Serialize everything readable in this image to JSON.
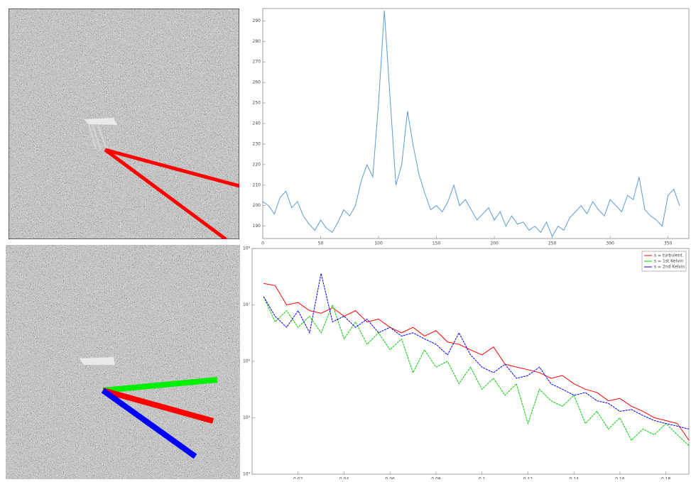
{
  "chart_data": [
    {
      "type": "line",
      "x": [
        0,
        5,
        10,
        15,
        20,
        25,
        30,
        35,
        40,
        45,
        50,
        55,
        60,
        65,
        70,
        75,
        80,
        85,
        90,
        95,
        100,
        105,
        110,
        115,
        120,
        125,
        130,
        135,
        140,
        145,
        150,
        155,
        160,
        165,
        170,
        175,
        180,
        185,
        190,
        195,
        200,
        205,
        210,
        215,
        220,
        225,
        230,
        235,
        240,
        245,
        250,
        255,
        260,
        265,
        270,
        275,
        280,
        285,
        290,
        295,
        300,
        305,
        310,
        315,
        320,
        325,
        330,
        335,
        340,
        345,
        350,
        355,
        360
      ],
      "series": [
        {
          "color": "#5b9bd5",
          "values": [
            202,
            200,
            196,
            204,
            207,
            199,
            202,
            195,
            191,
            188,
            193,
            189,
            187,
            192,
            198,
            195,
            200,
            212,
            220,
            214,
            250,
            295,
            252,
            210,
            220,
            246,
            229,
            215,
            206,
            198,
            200,
            197,
            202,
            210,
            200,
            203,
            198,
            193,
            196,
            199,
            193,
            197,
            190,
            195,
            191,
            192,
            188,
            190,
            187,
            192,
            185,
            190,
            188,
            194,
            197,
            200,
            196,
            202,
            198,
            195,
            203,
            200,
            197,
            205,
            203,
            214,
            198,
            195,
            193,
            190,
            205,
            208,
            200
          ]
        }
      ],
      "xlim": [
        0,
        368
      ],
      "xticks": [
        0,
        50,
        100,
        150,
        200,
        250,
        300,
        350
      ],
      "ylim": [
        184,
        296
      ],
      "yticks": [
        190,
        200,
        210,
        220,
        230,
        240,
        250,
        260,
        270,
        280,
        290
      ]
    },
    {
      "type": "line",
      "log_y": true,
      "legend": "top-right",
      "x": [
        0.005,
        0.01,
        0.015,
        0.02,
        0.025,
        0.03,
        0.035,
        0.04,
        0.045,
        0.05,
        0.055,
        0.06,
        0.065,
        0.07,
        0.075,
        0.08,
        0.085,
        0.09,
        0.095,
        0.1,
        0.105,
        0.11,
        0.115,
        0.12,
        0.125,
        0.13,
        0.135,
        0.14,
        0.145,
        0.15,
        0.155,
        0.16,
        0.165,
        0.17,
        0.175,
        0.18,
        0.185,
        0.19
      ],
      "series": [
        {
          "name": "s = turbulent",
          "color": "#ff0000",
          "values": [
            24000000.0,
            22000000.0,
            10000000.0,
            11000000.0,
            7900000.0,
            7100000.0,
            8900000.0,
            6300000.0,
            7900000.0,
            5000000.0,
            5600000.0,
            4000000.0,
            3200000.0,
            4000000.0,
            2800000.0,
            3500000.0,
            2200000.0,
            2000000.0,
            1600000.0,
            1300000.0,
            1800000.0,
            890000.0,
            790000.0,
            710000.0,
            630000.0,
            500000.0,
            560000.0,
            400000.0,
            320000.0,
            280000.0,
            200000.0,
            220000.0,
            160000.0,
            130000.0,
            100000.0,
            89000.0,
            79000.0,
            40000.0
          ]
        },
        {
          "name": "s = 1st Kelvin",
          "color": "#00cc00",
          "values": [
            14000000.0,
            5000000.0,
            7900000.0,
            4000000.0,
            6300000.0,
            3200000.0,
            10000000.0,
            2500000.0,
            5000000.0,
            2000000.0,
            3200000.0,
            1600000.0,
            2500000.0,
            630000.0,
            1600000.0,
            790000.0,
            1000000.0,
            400000.0,
            790000.0,
            320000.0,
            500000.0,
            250000.0,
            400000.0,
            79000.0,
            320000.0,
            200000.0,
            160000.0,
            250000.0,
            79000.0,
            130000.0,
            63000.0,
            100000.0,
            40000.0,
            63000.0,
            50000.0,
            79000.0,
            50000.0,
            32000.0
          ]
        },
        {
          "name": "s = 2nd Kelvin",
          "color": "#0000ff",
          "values": [
            14000000.0,
            6300000.0,
            4000000.0,
            7900000.0,
            3200000.0,
            36000000.0,
            5000000.0,
            6300000.0,
            4000000.0,
            5600000.0,
            3200000.0,
            4000000.0,
            2800000.0,
            3200000.0,
            2500000.0,
            2000000.0,
            1300000.0,
            3200000.0,
            1300000.0,
            790000.0,
            630000.0,
            890000.0,
            500000.0,
            560000.0,
            790000.0,
            400000.0,
            320000.0,
            250000.0,
            280000.0,
            200000.0,
            180000.0,
            130000.0,
            140000.0,
            110000.0,
            89000.0,
            79000.0,
            71000.0,
            63000.0
          ]
        }
      ],
      "xlim": [
        0,
        0.19
      ],
      "xticks": [
        0.02,
        0.04,
        0.06,
        0.08,
        0.1,
        0.12,
        0.14,
        0.16,
        0.18
      ],
      "ylim": [
        10000,
        100000000
      ],
      "yticks": [
        {
          "value": 10000,
          "label": "10⁴"
        },
        {
          "value": 100000,
          "label": "10⁵"
        },
        {
          "value": 1000000,
          "label": "10⁶"
        },
        {
          "value": 10000000,
          "label": "10⁷"
        },
        {
          "value": 100000000,
          "label": "10⁸"
        }
      ]
    }
  ]
}
